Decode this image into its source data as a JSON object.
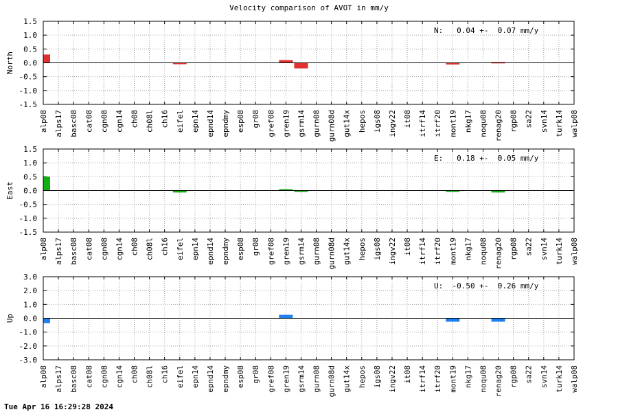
{
  "title": "Velocity comparison of AVOT in mm/y",
  "footer": "Tue Apr 16 16:29:28 2024",
  "chart_data": [
    {
      "type": "bar",
      "ylabel": "North",
      "annotation": "N:   0.04 +-  0.07 mm/y",
      "color": "#e03030",
      "ylim": [
        -1.5,
        1.5
      ],
      "yticks": [
        -1.5,
        -1.0,
        -0.5,
        0.0,
        0.5,
        1.0,
        1.5
      ],
      "ytick_labels": [
        "-1.5",
        "-1.0",
        "-0.5",
        "0.0",
        "0.5",
        "1.0",
        "1.5"
      ],
      "grid": true,
      "categories": [
        "alp08",
        "alps17",
        "basc08",
        "cat08",
        "cgn08",
        "cgn14",
        "ch08",
        "ch08l",
        "ch16",
        "eifel",
        "epn14",
        "epnd14",
        "epndmy",
        "esp08",
        "gr08",
        "gref08",
        "gren19",
        "gsrm14",
        "gurn08",
        "gurn08d",
        "gut14x",
        "hepos",
        "igs08",
        "ingv22",
        "it08",
        "itrf14",
        "itrf20",
        "mont19",
        "nkg17",
        "noqu08",
        "renag20",
        "rgp08",
        "sa22",
        "svn14",
        "turk14",
        "walp08"
      ],
      "values": {
        "alp08": 0.3,
        "eifel": -0.03,
        "gren19": 0.1,
        "gsrm14": -0.2,
        "mont19": -0.06,
        "renag20": 0.03
      }
    },
    {
      "type": "bar",
      "ylabel": "East",
      "annotation": "E:   0.18 +-  0.05 mm/y",
      "color": "#10b010",
      "ylim": [
        -1.5,
        1.5
      ],
      "yticks": [
        -1.5,
        -1.0,
        -0.5,
        0.0,
        0.5,
        1.0,
        1.5
      ],
      "ytick_labels": [
        "-1.5",
        "-1.0",
        "-0.5",
        "0.0",
        "0.5",
        "1.0",
        "1.5"
      ],
      "grid": true,
      "categories": [
        "alp08",
        "alps17",
        "basc08",
        "cat08",
        "cgn08",
        "cgn14",
        "ch08",
        "ch08l",
        "ch16",
        "eifel",
        "epn14",
        "epnd14",
        "epndmy",
        "esp08",
        "gr08",
        "gref08",
        "gren19",
        "gsrm14",
        "gurn08",
        "gurn08d",
        "gut14x",
        "hepos",
        "igs08",
        "ingv22",
        "it08",
        "itrf14",
        "itrf20",
        "mont19",
        "nkg17",
        "noqu08",
        "renag20",
        "rgp08",
        "sa22",
        "svn14",
        "turk14",
        "walp08"
      ],
      "values": {
        "alp08": 0.5,
        "eifel": -0.07,
        "gren19": 0.05,
        "gsrm14": -0.05,
        "mont19": -0.03,
        "renag20": -0.07
      }
    },
    {
      "type": "bar",
      "ylabel": "Up",
      "annotation": "U:  -0.50 +-  0.26 mm/y",
      "color": "#2080f0",
      "ylim": [
        -3.0,
        3.0
      ],
      "yticks": [
        -3.0,
        -2.0,
        -1.0,
        0.0,
        1.0,
        2.0,
        3.0
      ],
      "ytick_labels": [
        "-3.0",
        "-2.0",
        "-1.0",
        "0.0",
        "1.0",
        "2.0",
        "3.0"
      ],
      "grid": true,
      "categories": [
        "alp08",
        "alps17",
        "basc08",
        "cat08",
        "cgn08",
        "cgn14",
        "ch08",
        "ch08l",
        "ch16",
        "eifel",
        "epn14",
        "epnd14",
        "epndmy",
        "esp08",
        "gr08",
        "gref08",
        "gren19",
        "gsrm14",
        "gurn08",
        "gurn08d",
        "gut14x",
        "hepos",
        "igs08",
        "ingv22",
        "it08",
        "itrf14",
        "itrf20",
        "mont19",
        "nkg17",
        "noqu08",
        "renag20",
        "rgp08",
        "sa22",
        "svn14",
        "turk14",
        "walp08"
      ],
      "values": {
        "alp08": -0.35,
        "gren19": 0.25,
        "mont19": -0.25,
        "renag20": -0.25
      }
    }
  ]
}
